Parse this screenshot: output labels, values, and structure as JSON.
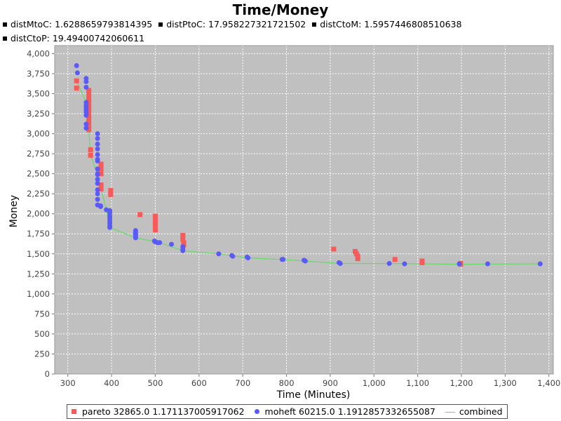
{
  "header": {
    "title": "Time/Money",
    "stats_line1": [
      {
        "label": "distMtoC: 1.6288659793814395"
      },
      {
        "label": "distPtoC: 17.958227321721502"
      },
      {
        "label": "distCtoM: 1.5957446808510638"
      }
    ],
    "stats_line2": [
      {
        "label": "distCtoP: 19.49400742060611"
      }
    ]
  },
  "legend": {
    "pareto": "pareto 32865.0 1.171137005917062",
    "moheft": "moheft 60215.0 1.1912857332655087",
    "combined": "combined"
  },
  "colors": {
    "plot_bg": "#c0c0c0",
    "pareto": "#f85a5a",
    "moheft": "#5a5af8",
    "combined": "#68d868",
    "grid": "#ffffff"
  },
  "chart_data": {
    "type": "scatter",
    "title": "Time/Money",
    "xlabel": "Time (Minutes)",
    "ylabel": "Money",
    "xlim": [
      270,
      1410
    ],
    "ylim": [
      0,
      4100
    ],
    "x_ticks": [
      300,
      400,
      500,
      600,
      700,
      800,
      900,
      1000,
      1100,
      1200,
      1300,
      1400
    ],
    "x_tick_labels": [
      "300",
      "400",
      "500",
      "600",
      "700",
      "800",
      "900",
      "1,000",
      "1,100",
      "1,200",
      "1,300",
      "1,400"
    ],
    "y_ticks": [
      0,
      250,
      500,
      750,
      1000,
      1250,
      1500,
      1750,
      2000,
      2250,
      2500,
      2750,
      3000,
      3250,
      3500,
      3750,
      4000
    ],
    "y_tick_labels": [
      "0",
      "250",
      "500",
      "750",
      "1,000",
      "1,250",
      "1,500",
      "1,750",
      "2,000",
      "2,250",
      "2,500",
      "2,750",
      "3,000",
      "3,250",
      "3,500",
      "3,750",
      "4,000"
    ],
    "grid": true,
    "series": [
      {
        "name": "pareto 32865.0 1.171137005917062",
        "marker": "square",
        "points": [
          [
            320,
            3660
          ],
          [
            320,
            3570
          ],
          [
            348,
            3540
          ],
          [
            348,
            3500
          ],
          [
            348,
            3460
          ],
          [
            348,
            3420
          ],
          [
            348,
            3380
          ],
          [
            348,
            3340
          ],
          [
            348,
            3300
          ],
          [
            348,
            3260
          ],
          [
            348,
            3220
          ],
          [
            348,
            3180
          ],
          [
            348,
            3140
          ],
          [
            348,
            3090
          ],
          [
            348,
            3050
          ],
          [
            352,
            2800
          ],
          [
            352,
            2730
          ],
          [
            376,
            2620
          ],
          [
            376,
            2560
          ],
          [
            376,
            2500
          ],
          [
            376,
            2360
          ],
          [
            376,
            2310
          ],
          [
            398,
            2290
          ],
          [
            398,
            2240
          ],
          [
            465,
            1990
          ],
          [
            500,
            1970
          ],
          [
            500,
            1910
          ],
          [
            500,
            1850
          ],
          [
            500,
            1800
          ],
          [
            563,
            1730
          ],
          [
            563,
            1680
          ],
          [
            565,
            1640
          ],
          [
            565,
            1610
          ],
          [
            908,
            1560
          ],
          [
            957,
            1530
          ],
          [
            960,
            1500
          ],
          [
            963,
            1470
          ],
          [
            963,
            1440
          ],
          [
            1048,
            1430
          ],
          [
            1110,
            1410
          ],
          [
            1110,
            1390
          ],
          [
            1198,
            1380
          ],
          [
            1198,
            1370
          ]
        ]
      },
      {
        "name": "moheft 60215.0 1.1912857332655087",
        "marker": "circle",
        "points": [
          [
            320,
            3850
          ],
          [
            322,
            3760
          ],
          [
            342,
            3690
          ],
          [
            342,
            3650
          ],
          [
            342,
            3580
          ],
          [
            342,
            3390
          ],
          [
            342,
            3350
          ],
          [
            342,
            3320
          ],
          [
            342,
            3290
          ],
          [
            342,
            3260
          ],
          [
            342,
            3230
          ],
          [
            342,
            3120
          ],
          [
            342,
            3070
          ],
          [
            368,
            3000
          ],
          [
            368,
            2940
          ],
          [
            368,
            2870
          ],
          [
            368,
            2810
          ],
          [
            368,
            2740
          ],
          [
            368,
            2680
          ],
          [
            368,
            2660
          ],
          [
            368,
            2560
          ],
          [
            368,
            2500
          ],
          [
            368,
            2490
          ],
          [
            368,
            2430
          ],
          [
            368,
            2380
          ],
          [
            368,
            2300
          ],
          [
            368,
            2250
          ],
          [
            368,
            2180
          ],
          [
            368,
            2110
          ],
          [
            375,
            2100
          ],
          [
            375,
            2090
          ],
          [
            388,
            2050
          ],
          [
            396,
            2040
          ],
          [
            396,
            2010
          ],
          [
            396,
            1970
          ],
          [
            396,
            1940
          ],
          [
            396,
            1910
          ],
          [
            396,
            1880
          ],
          [
            396,
            1850
          ],
          [
            396,
            1830
          ],
          [
            455,
            1790
          ],
          [
            455,
            1770
          ],
          [
            455,
            1750
          ],
          [
            455,
            1730
          ],
          [
            455,
            1710
          ],
          [
            455,
            1700
          ],
          [
            498,
            1660
          ],
          [
            500,
            1650
          ],
          [
            505,
            1640
          ],
          [
            510,
            1640
          ],
          [
            537,
            1620
          ],
          [
            563,
            1590
          ],
          [
            563,
            1560
          ],
          [
            563,
            1540
          ],
          [
            645,
            1500
          ],
          [
            675,
            1480
          ],
          [
            677,
            1470
          ],
          [
            710,
            1460
          ],
          [
            712,
            1450
          ],
          [
            790,
            1430
          ],
          [
            792,
            1430
          ],
          [
            840,
            1420
          ],
          [
            843,
            1410
          ],
          [
            920,
            1390
          ],
          [
            923,
            1380
          ],
          [
            1035,
            1380
          ],
          [
            1070,
            1375
          ],
          [
            1195,
            1375
          ],
          [
            1260,
            1375
          ],
          [
            1380,
            1375
          ]
        ]
      },
      {
        "name": "combined",
        "marker": "line",
        "points": [
          [
            320,
            3660
          ],
          [
            342,
            3390
          ],
          [
            348,
            3050
          ],
          [
            352,
            2730
          ],
          [
            368,
            2490
          ],
          [
            376,
            2310
          ],
          [
            388,
            2050
          ],
          [
            396,
            1830
          ],
          [
            455,
            1700
          ],
          [
            510,
            1640
          ],
          [
            563,
            1540
          ],
          [
            645,
            1500
          ],
          [
            712,
            1450
          ],
          [
            790,
            1430
          ],
          [
            843,
            1410
          ],
          [
            923,
            1380
          ],
          [
            1035,
            1380
          ],
          [
            1198,
            1370
          ],
          [
            1260,
            1372
          ],
          [
            1380,
            1375
          ]
        ]
      }
    ]
  }
}
